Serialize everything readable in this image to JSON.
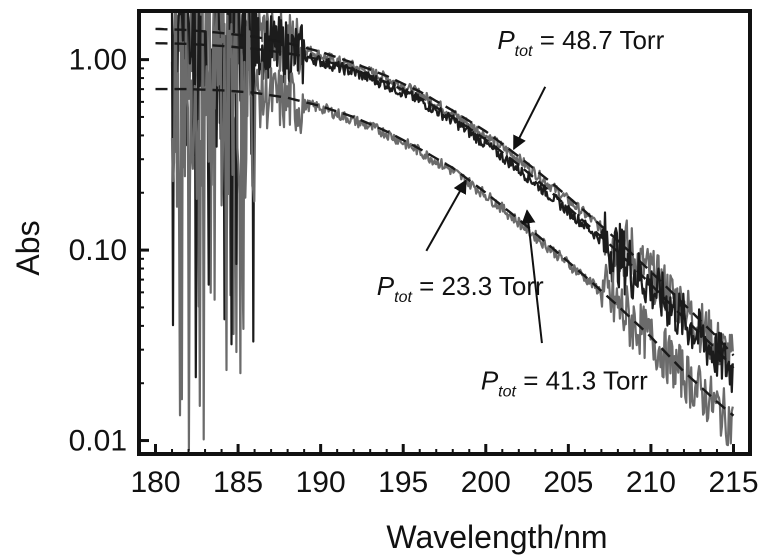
{
  "chart_data": {
    "type": "line",
    "title": "",
    "xlabel": "Wavelength/nm",
    "ylabel": "Abs",
    "xlim": [
      179,
      216
    ],
    "ylim": [
      0.0085,
      1.8
    ],
    "yscale": "log",
    "xticks": [
      180,
      185,
      190,
      195,
      200,
      205,
      210,
      215
    ],
    "xtick_labels": [
      "180",
      "185",
      "190",
      "195",
      "200",
      "205",
      "210",
      "215"
    ],
    "yticks": [
      0.01,
      0.1,
      1.0
    ],
    "ytick_labels": [
      "0.01",
      "0.10",
      "1.00"
    ],
    "grid": false,
    "legend": "none",
    "colors": {
      "measured_a": "#6b6b6b",
      "measured_b": "#1c1c1c",
      "fit": "#1a1a1a"
    },
    "series": [
      {
        "style": "measured",
        "x": [
          181,
          182,
          183,
          184,
          185,
          186,
          188,
          190,
          192,
          194,
          196,
          198,
          200,
          202,
          204,
          206,
          208,
          210,
          212,
          213,
          214,
          215
        ],
        "y": [
          1.0,
          1.3,
          1.4,
          1.3,
          1.5,
          1.4,
          1.25,
          1.05,
          0.92,
          0.8,
          0.66,
          0.52,
          0.4,
          0.3,
          0.215,
          0.155,
          0.11,
          0.075,
          0.05,
          0.04,
          0.032,
          0.026
        ]
      },
      {
        "style": "measured",
        "x": [
          181,
          182,
          183,
          184,
          185,
          186,
          188,
          190,
          192,
          194,
          196,
          198,
          200,
          202,
          204,
          206,
          208,
          210,
          212,
          213,
          214,
          215
        ],
        "y": [
          0.95,
          1.1,
          1.25,
          1.15,
          1.3,
          1.2,
          1.1,
          0.98,
          0.86,
          0.74,
          0.61,
          0.48,
          0.36,
          0.265,
          0.19,
          0.135,
          0.095,
          0.064,
          0.043,
          0.035,
          0.028,
          0.023
        ]
      },
      {
        "style": "measured",
        "x": [
          181,
          182,
          183,
          184,
          185,
          186,
          188,
          190,
          192,
          194,
          196,
          198,
          200,
          202,
          204,
          206,
          208,
          210,
          212,
          213,
          214,
          215
        ],
        "y": [
          0.6,
          0.7,
          0.75,
          0.68,
          0.72,
          0.66,
          0.6,
          0.56,
          0.48,
          0.41,
          0.33,
          0.26,
          0.195,
          0.14,
          0.1,
          0.072,
          0.05,
          0.034,
          0.022,
          0.018,
          0.015,
          0.012
        ]
      },
      {
        "style": "fit",
        "x": [
          180,
          182,
          184,
          186,
          188,
          190,
          192,
          194,
          196,
          198,
          200,
          202,
          204,
          206,
          208,
          210,
          212,
          214,
          215
        ],
        "y": [
          1.45,
          1.43,
          1.38,
          1.32,
          1.22,
          1.1,
          0.96,
          0.82,
          0.68,
          0.54,
          0.42,
          0.31,
          0.225,
          0.16,
          0.112,
          0.077,
          0.052,
          0.035,
          0.028
        ]
      },
      {
        "style": "fit",
        "x": [
          180,
          182,
          184,
          186,
          188,
          190,
          192,
          194,
          196,
          198,
          200,
          202,
          204,
          206,
          208,
          210,
          212,
          214,
          215
        ],
        "y": [
          1.22,
          1.21,
          1.18,
          1.14,
          1.08,
          1.0,
          0.89,
          0.76,
          0.63,
          0.5,
          0.38,
          0.28,
          0.2,
          0.14,
          0.098,
          0.066,
          0.044,
          0.03,
          0.024
        ]
      },
      {
        "style": "fit",
        "x": [
          180,
          182,
          184,
          186,
          188,
          190,
          192,
          194,
          196,
          198,
          200,
          202,
          204,
          206,
          208,
          210,
          212,
          214,
          215
        ],
        "y": [
          0.7,
          0.7,
          0.69,
          0.67,
          0.63,
          0.57,
          0.5,
          0.42,
          0.34,
          0.27,
          0.2,
          0.145,
          0.103,
          0.073,
          0.051,
          0.035,
          0.023,
          0.016,
          0.0135
        ]
      }
    ],
    "annotations": [
      {
        "prefix": "P",
        "sub": "tot",
        "text": " = 48.7 Torr",
        "text_pos": [
          200.7,
          1.14
        ],
        "arrow_from": [
          203.6,
          0.72
        ],
        "arrow_to": [
          201.7,
          0.34
        ]
      },
      {
        "prefix": "P",
        "sub": "tot",
        "text": " = 23.3 Torr",
        "text_pos": [
          193.4,
          0.058
        ],
        "arrow_from": [
          196.4,
          0.099
        ],
        "arrow_to": [
          198.8,
          0.232
        ]
      },
      {
        "prefix": "P",
        "sub": "tot",
        "text": " = 41.3 Torr",
        "text_pos": [
          199.7,
          0.0185
        ],
        "arrow_from": [
          203.4,
          0.0325
        ],
        "arrow_to": [
          202.5,
          0.161
        ]
      }
    ]
  }
}
